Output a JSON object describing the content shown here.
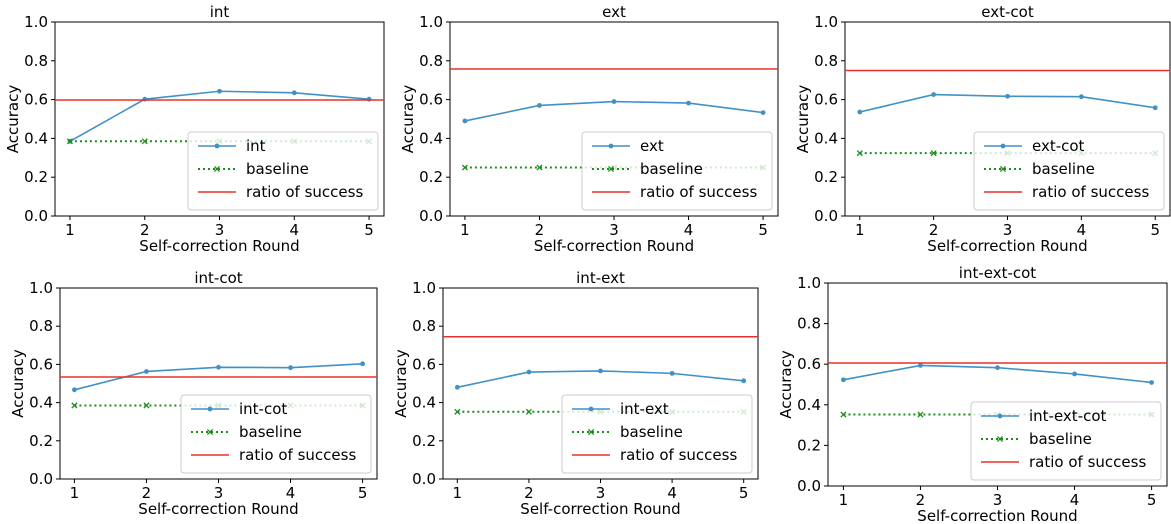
{
  "colors": {
    "series": "#4191c7",
    "baseline": "#1a8f1a",
    "ratio": "#e8302a",
    "axis": "#000000",
    "legend_border": "#cccccc"
  },
  "chart_data": [
    {
      "type": "line",
      "title": "int",
      "xlabel": "Self-correction Round",
      "ylabel": "Accuracy",
      "x": [
        1,
        2,
        3,
        4,
        5
      ],
      "xticks": [
        "1",
        "2",
        "3",
        "4",
        "5"
      ],
      "ylim": [
        0.0,
        1.0
      ],
      "yticks": [
        "0.0",
        "0.2",
        "0.4",
        "0.6",
        "0.8",
        "1.0"
      ],
      "legend_position": "lower-right",
      "series": [
        {
          "name": "int",
          "kind": "line-marker",
          "color": "#4191c7",
          "values": [
            0.385,
            0.602,
            0.643,
            0.635,
            0.602
          ]
        },
        {
          "name": "baseline",
          "kind": "dotted-x",
          "color": "#1a8f1a",
          "values": [
            0.385,
            0.385,
            0.385,
            0.385,
            0.385
          ]
        },
        {
          "name": "ratio of success",
          "kind": "hline",
          "color": "#e8302a",
          "value": 0.598
        }
      ]
    },
    {
      "type": "line",
      "title": "ext",
      "xlabel": "Self-correction Round",
      "ylabel": "Accuracy",
      "x": [
        1,
        2,
        3,
        4,
        5
      ],
      "xticks": [
        "1",
        "2",
        "3",
        "4",
        "5"
      ],
      "ylim": [
        0.0,
        1.0
      ],
      "yticks": [
        "0.0",
        "0.2",
        "0.4",
        "0.6",
        "0.8",
        "1.0"
      ],
      "legend_position": "lower-right",
      "series": [
        {
          "name": "ext",
          "kind": "line-marker",
          "color": "#4191c7",
          "values": [
            0.49,
            0.57,
            0.59,
            0.582,
            0.533
          ]
        },
        {
          "name": "baseline",
          "kind": "dotted-x",
          "color": "#1a8f1a",
          "values": [
            0.25,
            0.25,
            0.25,
            0.25,
            0.25
          ]
        },
        {
          "name": "ratio of success",
          "kind": "hline",
          "color": "#e8302a",
          "value": 0.758
        }
      ]
    },
    {
      "type": "line",
      "title": "ext-cot",
      "xlabel": "Self-correction Round",
      "ylabel": "Accuracy",
      "x": [
        1,
        2,
        3,
        4,
        5
      ],
      "xticks": [
        "1",
        "2",
        "3",
        "4",
        "5"
      ],
      "ylim": [
        0.0,
        1.0
      ],
      "yticks": [
        "0.0",
        "0.2",
        "0.4",
        "0.6",
        "0.8",
        "1.0"
      ],
      "legend_position": "lower-right",
      "series": [
        {
          "name": "ext-cot",
          "kind": "line-marker",
          "color": "#4191c7",
          "values": [
            0.536,
            0.626,
            0.617,
            0.615,
            0.558
          ]
        },
        {
          "name": "baseline",
          "kind": "dotted-x",
          "color": "#1a8f1a",
          "values": [
            0.324,
            0.324,
            0.324,
            0.324,
            0.324
          ]
        },
        {
          "name": "ratio of success",
          "kind": "hline",
          "color": "#e8302a",
          "value": 0.75
        }
      ]
    },
    {
      "type": "line",
      "title": "int-cot",
      "xlabel": "Self-correction Round",
      "ylabel": "Accuracy",
      "x": [
        1,
        2,
        3,
        4,
        5
      ],
      "xticks": [
        "1",
        "2",
        "3",
        "4",
        "5"
      ],
      "ylim": [
        0.0,
        1.0
      ],
      "yticks": [
        "0.0",
        "0.2",
        "0.4",
        "0.6",
        "0.8",
        "1.0"
      ],
      "legend_position": "lower-right",
      "series": [
        {
          "name": "int-cot",
          "kind": "line-marker",
          "color": "#4191c7",
          "values": [
            0.467,
            0.563,
            0.585,
            0.583,
            0.603
          ]
        },
        {
          "name": "baseline",
          "kind": "dotted-x",
          "color": "#1a8f1a",
          "values": [
            0.385,
            0.385,
            0.385,
            0.385,
            0.385
          ]
        },
        {
          "name": "ratio of success",
          "kind": "hline",
          "color": "#e8302a",
          "value": 0.534
        }
      ]
    },
    {
      "type": "line",
      "title": "int-ext",
      "xlabel": "Self-correction Round",
      "ylabel": "Accuracy",
      "x": [
        1,
        2,
        3,
        4,
        5
      ],
      "xticks": [
        "1",
        "2",
        "3",
        "4",
        "5"
      ],
      "ylim": [
        0.0,
        1.0
      ],
      "yticks": [
        "0.0",
        "0.2",
        "0.4",
        "0.6",
        "0.8",
        "1.0"
      ],
      "legend_position": "lower-right",
      "series": [
        {
          "name": "int-ext",
          "kind": "line-marker",
          "color": "#4191c7",
          "values": [
            0.48,
            0.56,
            0.566,
            0.553,
            0.514
          ]
        },
        {
          "name": "baseline",
          "kind": "dotted-x",
          "color": "#1a8f1a",
          "values": [
            0.352,
            0.352,
            0.352,
            0.352,
            0.352
          ]
        },
        {
          "name": "ratio of success",
          "kind": "hline",
          "color": "#e8302a",
          "value": 0.745
        }
      ]
    },
    {
      "type": "line",
      "title": "int-ext-cot",
      "xlabel": "Self-correction Round",
      "ylabel": "Accuracy",
      "x": [
        1,
        2,
        3,
        4,
        5
      ],
      "xticks": [
        "1",
        "2",
        "3",
        "4",
        "5"
      ],
      "ylim": [
        0.0,
        1.0
      ],
      "yticks": [
        "0.0",
        "0.2",
        "0.4",
        "0.6",
        "0.8",
        "1.0"
      ],
      "legend_position": "lower-right",
      "series": [
        {
          "name": "int-ext-cot",
          "kind": "line-marker",
          "color": "#4191c7",
          "values": [
            0.523,
            0.594,
            0.583,
            0.552,
            0.51
          ]
        },
        {
          "name": "baseline",
          "kind": "dotted-x",
          "color": "#1a8f1a",
          "values": [
            0.352,
            0.352,
            0.352,
            0.352,
            0.352
          ]
        },
        {
          "name": "ratio of success",
          "kind": "hline",
          "color": "#e8302a",
          "value": 0.606
        }
      ]
    }
  ]
}
